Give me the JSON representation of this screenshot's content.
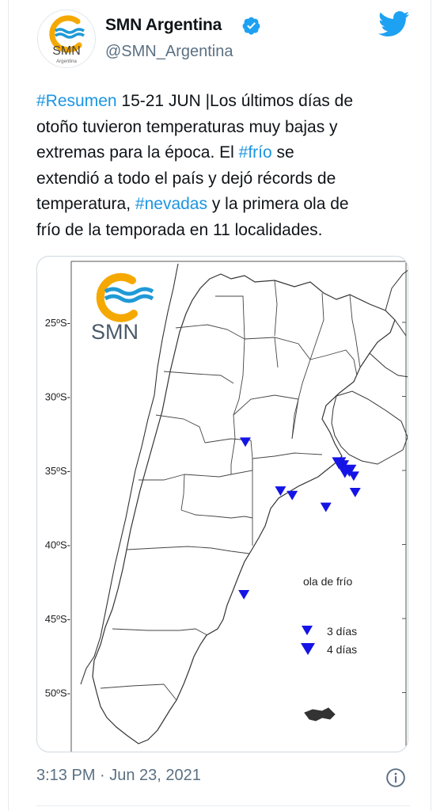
{
  "tweet": {
    "display_name": "SMN Argentina",
    "handle": "@SMN_Argentina",
    "avatar": {
      "logo_text": "SMN",
      "logo_subtext": "Argentina"
    },
    "text_lines": [
      [
        {
          "t": "#Resumen",
          "tag": true
        },
        {
          "t": " 15-21 JUN |Los últimos días de",
          "tag": false
        }
      ],
      [
        {
          "t": "otoño tuvieron temperaturas muy bajas y",
          "tag": false
        }
      ],
      [
        {
          "t": "extremas para la época. El ",
          "tag": false
        },
        {
          "t": "#frío",
          "tag": true
        },
        {
          "t": " se",
          "tag": false
        }
      ],
      [
        {
          "t": "extendió a todo el país y dejó récords de",
          "tag": false
        }
      ],
      [
        {
          "t": "temperatura, ",
          "tag": false
        },
        {
          "t": "#nevadas",
          "tag": true
        },
        {
          "t": " y  la primera ola de",
          "tag": false
        }
      ],
      [
        {
          "t": "frío de la temporada en 11 localidades.",
          "tag": false
        }
      ]
    ],
    "timestamp": "3:13 PM · Jun 23, 2021",
    "colors": {
      "hashtag": "#1b95e0",
      "verified": "#1da1f2",
      "twitter_logo": "#1da1f2",
      "secondary_text": "#5b7083"
    }
  },
  "map": {
    "logo_text": "SMN",
    "latitude_labels": [
      "25ºS-",
      "30ºS-",
      "35ºS-",
      "40ºS-",
      "45ºS-",
      "50ºS-"
    ],
    "legend_title": "ola de frío",
    "legend_items": [
      {
        "label": "3 días",
        "symbol": "triangle-down-small"
      },
      {
        "label": "4 días",
        "symbol": "triangle-down-large"
      }
    ],
    "marker_color": "#1414e6",
    "markers": [
      {
        "lat": -33.0,
        "lon": -65.0,
        "days": 3
      },
      {
        "lat": -34.4,
        "lon": -58.6,
        "days": 4
      },
      {
        "lat": -34.6,
        "lon": -58.4,
        "days": 4
      },
      {
        "lat": -34.9,
        "lon": -57.9,
        "days": 4
      },
      {
        "lat": -35.1,
        "lon": -58.2,
        "days": 3
      },
      {
        "lat": -35.3,
        "lon": -57.6,
        "days": 3
      },
      {
        "lat": -36.3,
        "lon": -62.6,
        "days": 3
      },
      {
        "lat": -36.6,
        "lon": -61.8,
        "days": 3
      },
      {
        "lat": -36.4,
        "lon": -57.5,
        "days": 3
      },
      {
        "lat": -37.4,
        "lon": -59.5,
        "days": 3
      },
      {
        "lat": -43.3,
        "lon": -65.1,
        "days": 3
      }
    ]
  },
  "icons": {
    "verified": "verified-badge-icon",
    "twitter": "twitter-bird-icon",
    "info": "info-circle-icon"
  }
}
